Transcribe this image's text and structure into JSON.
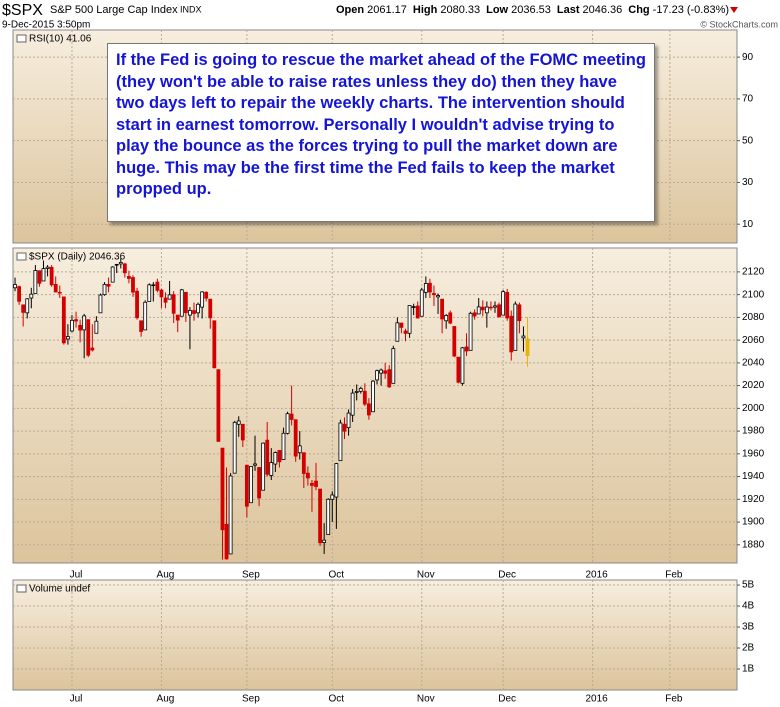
{
  "header": {
    "symbol": "$SPX",
    "name": "S&P 500 Large Cap Index",
    "exchange": "INDX",
    "timestamp": "9-Dec-2015 3:50pm",
    "credit": "© StockCharts.com",
    "quote": [
      {
        "label": "Open",
        "value": 2061.17
      },
      {
        "label": "High",
        "value": 2080.33
      },
      {
        "label": "Low",
        "value": 2036.53
      },
      {
        "label": "Last",
        "value": 2046.36
      },
      {
        "label": "Chg",
        "value": -17.23
      }
    ],
    "change_percent": "(-0.83%)"
  },
  "chart_data": [
    {
      "type": "panel",
      "label": "RSI(10) 41.06",
      "ylim": [
        1,
        103
      ],
      "yticks": [
        10,
        30,
        50,
        70,
        90
      ],
      "grid": true,
      "annotation": "If the Fed is going to rescue the market ahead of the FOMC meeting (they won't be able to raise rates unless they do) then they have two days left to repair the weekly charts. The intervention should start in earnest tomorrow. Personally I wouldn't advise trying to play the bounce as the forces trying to pull the market down are huge. This may be the first time the Fed fails to keep the market propped up."
    },
    {
      "type": "candlestick",
      "label": "$SPX (Daily) 2046.36",
      "ylim": [
        1864,
        2141
      ],
      "yticks": [
        1880,
        1900,
        1920,
        1940,
        1960,
        1980,
        2000,
        2020,
        2040,
        2060,
        2080,
        2100,
        2120
      ],
      "grid": true,
      "up_color": "#000000",
      "down_color": "#d40000",
      "last_color": "#e8b400",
      "categories": [
        null,
        null,
        null,
        null,
        null,
        null,
        null,
        null,
        null,
        null,
        null,
        null,
        null,
        null,
        "Jul",
        null,
        null,
        null,
        null,
        null,
        null,
        null,
        null,
        null,
        null,
        null,
        null,
        null,
        null,
        null,
        null,
        null,
        null,
        null,
        null,
        null,
        "Aug",
        null,
        null,
        null,
        null,
        null,
        null,
        null,
        null,
        null,
        null,
        null,
        null,
        null,
        null,
        null,
        null,
        null,
        null,
        null,
        null,
        "Sep",
        null,
        null,
        null,
        null,
        null,
        null,
        null,
        null,
        null,
        null,
        null,
        null,
        null,
        null,
        null,
        null,
        null,
        null,
        null,
        null,
        "Oct",
        null,
        null,
        null,
        null,
        null,
        null,
        null,
        null,
        null,
        null,
        null,
        null,
        null,
        null,
        null,
        null,
        null,
        null,
        null,
        null,
        null,
        "Nov",
        null,
        null,
        null,
        null,
        null,
        null,
        null,
        null,
        null,
        null,
        null,
        null,
        null,
        null,
        null,
        null,
        null,
        null,
        null,
        "Dec",
        null,
        null,
        null,
        null,
        null,
        null,
        null,
        null,
        null,
        null,
        null,
        null,
        null,
        null,
        null,
        null,
        null,
        null,
        null,
        null,
        null,
        "2016",
        null,
        null,
        null,
        null,
        null,
        null,
        null,
        null,
        null,
        null,
        null,
        null,
        null,
        null,
        null,
        null,
        null,
        null,
        "Feb",
        null,
        null,
        null,
        null,
        null,
        null,
        null,
        null,
        null,
        null,
        null,
        null,
        null,
        null,
        null,
        null
      ],
      "ohlc": [
        [
          2106,
          2115,
          2103,
          2108.9
        ],
        [
          2107,
          2108,
          2091,
          2094.1
        ],
        [
          2091,
          2091,
          2072,
          2084.4
        ],
        [
          2084,
          2097,
          2079,
          2096.3
        ],
        [
          2097,
          2106,
          2088,
          2100.4
        ],
        [
          2101,
          2126,
          2101,
          2121.2
        ],
        [
          2121,
          2121,
          2107,
          2110
        ],
        [
          2112,
          2130,
          2112,
          2122.9
        ],
        [
          2123,
          2126,
          2116,
          2124.2
        ],
        [
          2124,
          2126,
          2107,
          2108.6
        ],
        [
          2109,
          2116,
          2102,
          2102.3
        ],
        [
          2102,
          2108,
          2097,
          2101.5
        ],
        [
          2098,
          2098,
          2056,
          2057.6
        ],
        [
          2061,
          2074,
          2056,
          2063.1
        ],
        [
          2068,
          2082,
          2067,
          2077.4
        ],
        [
          2078,
          2085,
          2071,
          2076.8
        ],
        [
          2073,
          2078,
          2058,
          2068.8
        ],
        [
          2069,
          2083,
          2044,
          2081.3
        ],
        [
          2078,
          2078,
          2045,
          2046.7
        ],
        [
          2053,
          2074,
          2050,
          2051.3
        ],
        [
          2066,
          2081,
          2066,
          2076.6
        ],
        [
          2084,
          2101,
          2084,
          2099.6
        ],
        [
          2100,
          2111,
          2099,
          2109
        ],
        [
          2109,
          2115,
          2102,
          2107.4
        ],
        [
          2111,
          2125,
          2111,
          2124.3
        ],
        [
          2126,
          2127,
          2119,
          2126.6
        ],
        [
          2127,
          2132,
          2123,
          2128.3
        ],
        [
          2127,
          2128,
          2115,
          2119.2
        ],
        [
          2116,
          2121,
          2110,
          2114.2
        ],
        [
          2115,
          2117,
          2098,
          2102.2
        ],
        [
          2103,
          2106,
          2078,
          2079.7
        ],
        [
          2077,
          2077,
          2063,
          2067.6
        ],
        [
          2069,
          2095,
          2069,
          2093.3
        ],
        [
          2094,
          2110,
          2094,
          2108.6
        ],
        [
          2108,
          2111,
          2094,
          2108.6
        ],
        [
          2111,
          2114,
          2102,
          2103.8
        ],
        [
          2104,
          2105,
          2088,
          2098
        ],
        [
          2097,
          2102,
          2088,
          2093.3
        ],
        [
          2096,
          2112,
          2096,
          2099.8
        ],
        [
          2100,
          2103,
          2075,
          2083.6
        ],
        [
          2082,
          2082,
          2067,
          2077.6
        ],
        [
          2081,
          2105,
          2081,
          2104.2
        ],
        [
          2102,
          2102,
          2076,
          2084.1
        ],
        [
          2082,
          2089,
          2052,
          2086.1
        ],
        [
          2086,
          2093,
          2077,
          2083.4
        ],
        [
          2084,
          2093,
          2080,
          2091.5
        ],
        [
          2089,
          2103,
          2079,
          2102.4
        ],
        [
          2102,
          2103,
          2094,
          2096.9
        ],
        [
          2096,
          2096,
          2070,
          2079.6
        ],
        [
          2077,
          2077,
          2035,
          2035.7
        ],
        [
          2034,
          2034,
          1971,
          1970.9
        ],
        [
          1965,
          1965,
          1867,
          1893.2
        ],
        [
          1898,
          1948,
          1867,
          1867.6
        ],
        [
          1872,
          1943,
          1872,
          1940.5
        ],
        [
          1943,
          1989,
          1943,
          1987.7
        ],
        [
          1986,
          1993,
          1975,
          1988.9
        ],
        [
          1986,
          1986,
          1966,
          1972.2
        ],
        [
          1950,
          1950,
          1904,
          1913.9
        ],
        [
          1917,
          1949,
          1917,
          1948.9
        ],
        [
          1950,
          1976,
          1945,
          1951.1
        ],
        [
          1948,
          1948,
          1914,
          1921.2
        ],
        [
          1928,
          1970,
          1928,
          1969.4
        ],
        [
          1972,
          1988,
          1940,
          1942
        ],
        [
          1941,
          1965,
          1937,
          1952.3
        ],
        [
          1951,
          1962,
          1944,
          1961.1
        ],
        [
          1963,
          1963,
          1948,
          1953
        ],
        [
          1955,
          1983,
          1955,
          1978.1
        ],
        [
          1978,
          1997,
          1977,
          1995.3
        ],
        [
          1995,
          2020,
          1985,
          1990.2
        ],
        [
          1990,
          1990,
          1953,
          1958
        ],
        [
          1961,
          1980,
          1955,
          1967
        ],
        [
          1961,
          1961,
          1930,
          1942.7
        ],
        [
          1943,
          1949,
          1932,
          1938.8
        ],
        [
          1934,
          1937,
          1909,
          1932.2
        ],
        [
          1936,
          1952,
          1928,
          1931.3
        ],
        [
          1929,
          1929,
          1879,
          1881.8
        ],
        [
          1882,
          1899,
          1872,
          1884.1
        ],
        [
          1889,
          1921,
          1889,
          1920
        ],
        [
          1920,
          1927,
          1900,
          1923.8
        ],
        [
          1922,
          1952,
          1894,
          1951.4
        ],
        [
          1954,
          1990,
          1954,
          1987.1
        ],
        [
          1986,
          1992,
          1973,
          1979.9
        ],
        [
          1983,
          1999,
          1976,
          1995.8
        ],
        [
          1994,
          2017,
          1988,
          2013.4
        ],
        [
          2014,
          2021,
          2007,
          2014.9
        ],
        [
          2015,
          2019,
          2013,
          2017.5
        ],
        [
          2015,
          2022,
          2002,
          2003.7
        ],
        [
          2004,
          2009,
          1990,
          1994.2
        ],
        [
          1997,
          2025,
          1997,
          2023.9
        ],
        [
          2025,
          2034,
          2021,
          2033.1
        ],
        [
          2031,
          2035,
          2020,
          2033.7
        ],
        [
          2033,
          2040,
          2026,
          2030.8
        ],
        [
          2034,
          2038,
          2018,
          2018.9
        ],
        [
          2022,
          2055,
          2022,
          2052.5
        ],
        [
          2059,
          2080,
          2059,
          2075.2
        ],
        [
          2075,
          2075,
          2066,
          2071.2
        ],
        [
          2068,
          2070,
          2059,
          2065.9
        ],
        [
          2066,
          2090,
          2062,
          2090.4
        ],
        [
          2089,
          2092,
          2082,
          2089.4
        ],
        [
          2090,
          2094,
          2079,
          2079.4
        ],
        [
          2081,
          2106,
          2081,
          2104.1
        ],
        [
          2102,
          2116,
          2097,
          2109.8
        ],
        [
          2110,
          2114,
          2097,
          2102.3
        ],
        [
          2101,
          2108,
          2090,
          2099.9
        ],
        [
          2098,
          2101,
          2083,
          2099.2
        ],
        [
          2096,
          2096,
          2066,
          2078.6
        ],
        [
          2077,
          2083,
          2070,
          2081.7
        ],
        [
          2084,
          2086,
          2074,
          2075
        ],
        [
          2072,
          2072,
          2045,
          2046
        ],
        [
          2045,
          2045,
          2022,
          2023
        ],
        [
          2022,
          2054,
          2020,
          2053.2
        ],
        [
          2054,
          2066,
          2046,
          2050.4
        ],
        [
          2051,
          2085,
          2051,
          2083.6
        ],
        [
          2084,
          2087,
          2078,
          2081.2
        ],
        [
          2083,
          2097,
          2083,
          2089.2
        ],
        [
          2089,
          2095,
          2081,
          2086.6
        ],
        [
          2084,
          2094,
          2071,
          2089.1
        ],
        [
          2089,
          2094,
          2086,
          2088.9
        ],
        [
          2089,
          2094,
          2084,
          2090.1
        ],
        [
          2091,
          2093,
          2080,
          2080.4
        ],
        [
          2082,
          2104,
          2082,
          2102.6
        ],
        [
          2102,
          2105,
          2077,
          2079.5
        ],
        [
          2081,
          2086,
          2042,
          2049.6
        ],
        [
          2051,
          2094,
          2051,
          2091.7
        ],
        [
          2091,
          2093,
          2066,
          2077.1
        ],
        [
          2062,
          2072,
          2050,
          2063.6
        ],
        [
          2061.17,
          2080.33,
          2036.53,
          2046.36
        ],
        null,
        null,
        null,
        null,
        null,
        null,
        null,
        null,
        null,
        null,
        null,
        null,
        null,
        null,
        null,
        null,
        null,
        null,
        null,
        null,
        null,
        null,
        null,
        null,
        null,
        null,
        null,
        null,
        null,
        null,
        null,
        null,
        null,
        null,
        null,
        null,
        null,
        null,
        null,
        null,
        null,
        null,
        null,
        null,
        null,
        null,
        null,
        null,
        null,
        null,
        null
      ]
    },
    {
      "type": "panel",
      "label": "Volume undef",
      "ylim": [
        0,
        5240000000
      ],
      "yticks": [
        {
          "value": 1000000000,
          "label": "1B"
        },
        {
          "value": 2000000000,
          "label": "2B"
        },
        {
          "value": 3000000000,
          "label": "3B"
        },
        {
          "value": 4000000000,
          "label": "4B"
        },
        {
          "value": 5000000000,
          "label": "5B"
        }
      ],
      "grid": true
    }
  ]
}
